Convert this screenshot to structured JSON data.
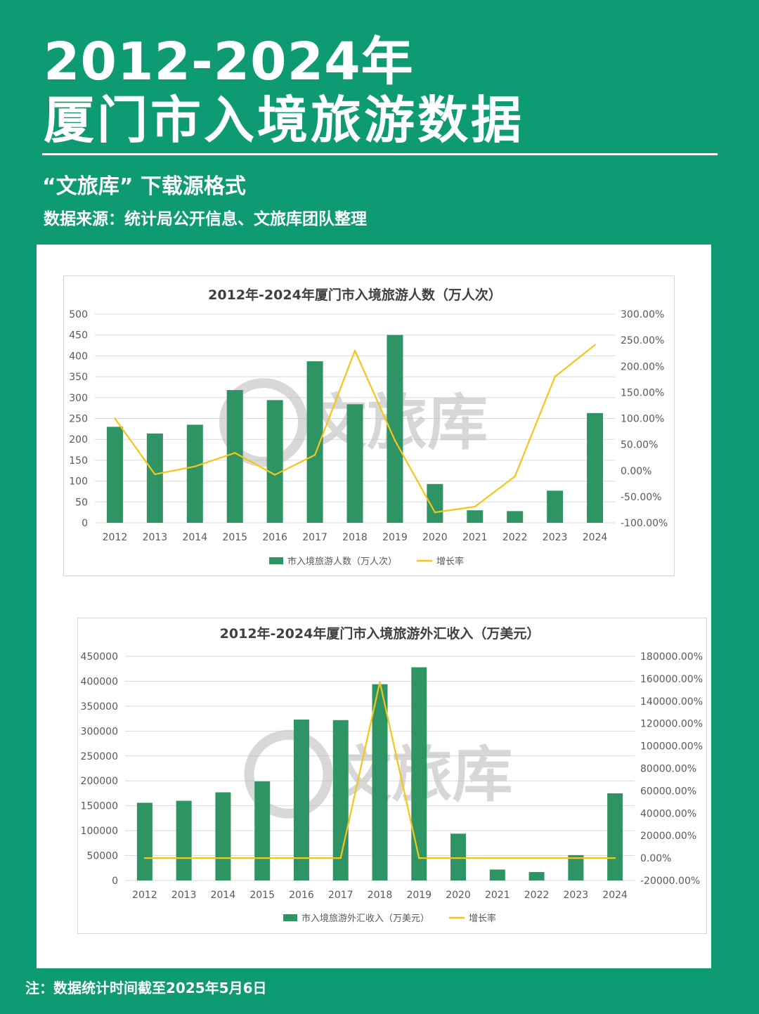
{
  "header": {
    "title_line1": "2012-2024年",
    "title_line2": "厦门市入境旅游数据",
    "subtitle": "“文旅库” 下载源格式",
    "source": "数据来源：统计局公开信息、文旅库团队整理"
  },
  "footer": {
    "note": "注：数据统计时间截至2025年5月6日"
  },
  "watermark": {
    "text": "文旅库"
  },
  "colors": {
    "background": "#0e9a72",
    "bar": "#2e9463",
    "line": "#f5c518",
    "grid": "#d9d9d9"
  },
  "chart_data": [
    {
      "type": "bar",
      "title": "2012年-2024年厦门市入境旅游人数（万人次）",
      "categories": [
        "2012",
        "2013",
        "2014",
        "2015",
        "2016",
        "2017",
        "2018",
        "2019",
        "2020",
        "2021",
        "2022",
        "2023",
        "2024"
      ],
      "y_ticks": [
        "0",
        "50",
        "100",
        "150",
        "200",
        "250",
        "300",
        "350",
        "400",
        "450",
        "500"
      ],
      "y2_ticks": [
        "-100.00%",
        "-50.00%",
        "0.00%",
        "50.00%",
        "100.00%",
        "150.00%",
        "200.00%",
        "250.00%",
        "300.00%"
      ],
      "ylim": [
        0,
        500
      ],
      "y2lim": [
        -100,
        300
      ],
      "series": [
        {
          "name": "市入境旅游人数（万人次）",
          "type": "bar",
          "axis": "left",
          "values": [
            230,
            214,
            235,
            318,
            294,
            387,
            284,
            450,
            93,
            30,
            28,
            77,
            263
          ]
        },
        {
          "name": "增长率",
          "type": "line",
          "axis": "right",
          "values": [
            100,
            -7,
            8,
            34,
            -8,
            30,
            230,
            58,
            -80,
            -69,
            -11,
            180,
            241
          ]
        }
      ],
      "legend": "bottom",
      "grid": true
    },
    {
      "type": "bar",
      "title": "2012年-2024年厦门市入境旅游外汇收入（万美元）",
      "categories": [
        "2012",
        "2013",
        "2014",
        "2015",
        "2016",
        "2017",
        "2018",
        "2019",
        "2020",
        "2021",
        "2022",
        "2023",
        "2024"
      ],
      "y_ticks": [
        "0",
        "50000",
        "100000",
        "150000",
        "200000",
        "250000",
        "300000",
        "350000",
        "400000",
        "450000"
      ],
      "y2_ticks": [
        "-20000.00%",
        "0.00%",
        "20000.00%",
        "40000.00%",
        "60000.00%",
        "80000.00%",
        "100000.00%",
        "120000.00%",
        "140000.00%",
        "160000.00%",
        "180000.00%"
      ],
      "ylim": [
        0,
        450000
      ],
      "y2lim": [
        -20000,
        180000
      ],
      "series": [
        {
          "name": "市入境旅游外汇收入（万美元）",
          "type": "bar",
          "axis": "left",
          "values": [
            156000,
            160000,
            177000,
            199000,
            323000,
            322000,
            394000,
            428000,
            94000,
            22000,
            17000,
            51000,
            175000
          ]
        },
        {
          "name": "增长率",
          "type": "line",
          "axis": "right",
          "values": [
            0,
            0,
            0,
            0,
            0,
            0,
            157000,
            0,
            0,
            0,
            0,
            0,
            0
          ]
        }
      ],
      "legend": "bottom",
      "grid": true
    }
  ]
}
